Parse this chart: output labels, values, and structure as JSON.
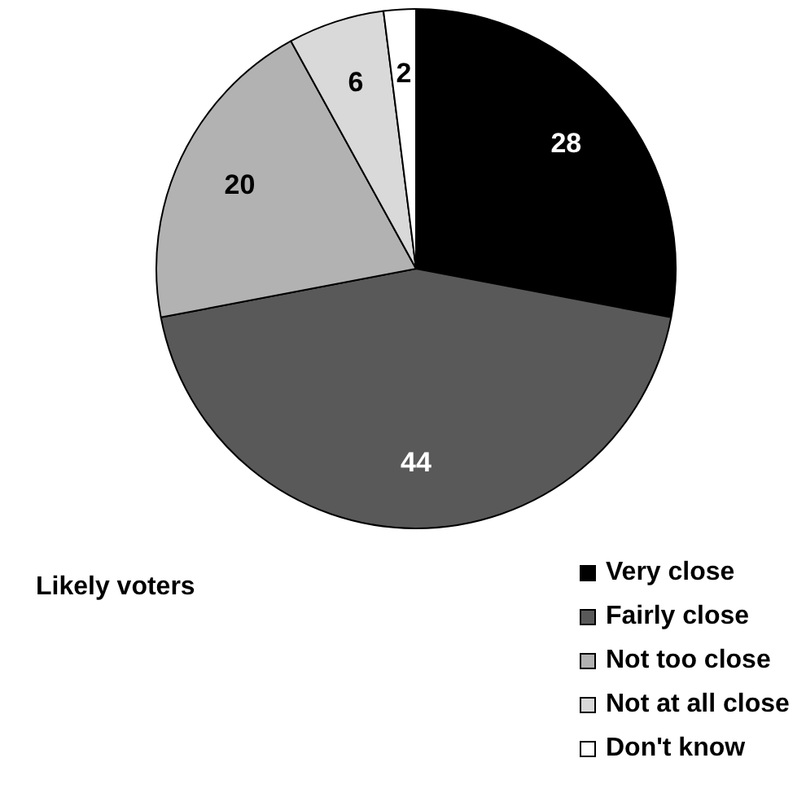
{
  "chart_data": {
    "type": "pie",
    "categories": [
      "Very close",
      "Fairly close",
      "Not too close",
      "Not at all close",
      "Don't know"
    ],
    "values": [
      28,
      44,
      20,
      6,
      2
    ],
    "colors": [
      "#000000",
      "#595959",
      "#b2b2b2",
      "#d9d9d9",
      "#ffffff"
    ],
    "data_labels": true,
    "legend": "bottom right",
    "annotations": [
      "Likely voters"
    ]
  }
}
